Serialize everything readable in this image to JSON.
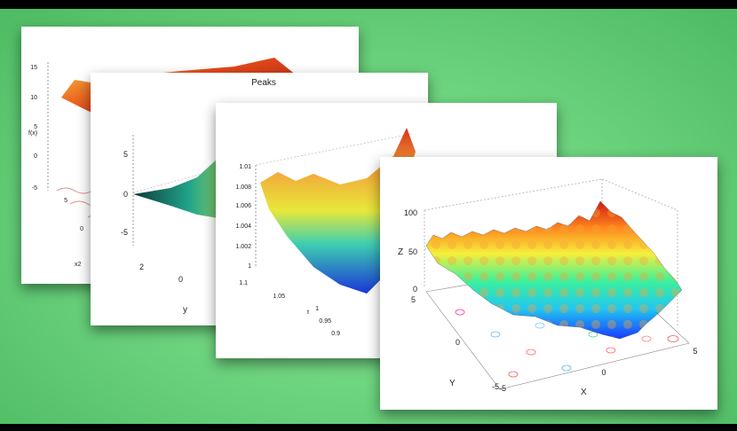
{
  "chart_data": [
    {
      "type": "surface",
      "panel": 1,
      "zlabel": "f(x)",
      "ylabel": "x2",
      "zticks": [
        "15",
        "10",
        "5",
        "0",
        "-5"
      ],
      "yticks": [
        "5",
        "0"
      ]
    },
    {
      "type": "surface",
      "panel": 2,
      "title": "Peaks",
      "ylabel": "y",
      "zticks": [
        "5",
        "0",
        "-5"
      ],
      "yticks": [
        "2",
        "0"
      ]
    },
    {
      "type": "surface",
      "panel": 3,
      "xlabel": "t",
      "zticks": [
        "1.01",
        "1.008",
        "1.006",
        "1.004",
        "1.002",
        "1"
      ],
      "xticks": [
        "1.1",
        "1.05",
        "1",
        "0.95",
        "0.9"
      ]
    },
    {
      "type": "surface",
      "panel": 4,
      "title": "",
      "xlabel": "X",
      "ylabel": "Y",
      "zlabel": "Z",
      "zlim": [
        0,
        100
      ],
      "zticks": [
        "100",
        "50",
        "0"
      ],
      "xticks": [
        "-5",
        "0",
        "5"
      ],
      "yticks": [
        "5",
        "0",
        "-5"
      ],
      "xlim": [
        -5,
        5
      ],
      "ylim": [
        -5,
        5
      ],
      "grid": true,
      "contour_projection": true,
      "colormap": [
        "#1a3cff",
        "#22c8f0",
        "#3ef09a",
        "#f6ef3a",
        "#ff8a1e",
        "#d21a12"
      ]
    }
  ]
}
